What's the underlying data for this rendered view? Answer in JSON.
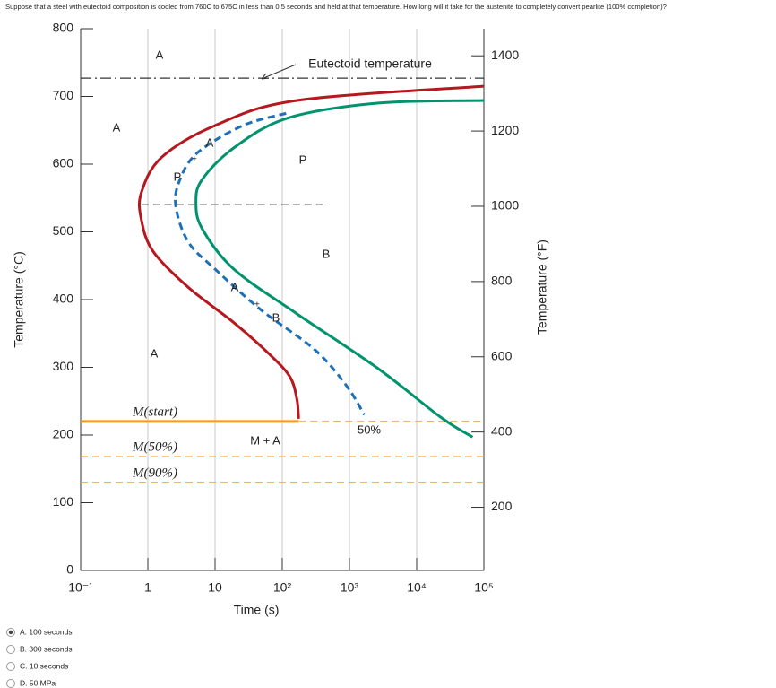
{
  "question": "Suppose that a steel with eutectoid composition is cooled from 760C to 675C in less than 0.5 seconds and held at that temperature. How long will it take for the austenite to completely convert pearlite (100% completion)?",
  "chart_data": {
    "type": "line",
    "xlabel": "Time (s)",
    "ylabel": "Temperature (°C)",
    "y2label": "Temperature (°F)",
    "xscale": "log",
    "xlim": [
      0.1,
      100000
    ],
    "xticks": [
      {
        "value": 0.1,
        "label": "10⁻¹"
      },
      1,
      10,
      {
        "value": 100,
        "label": "10²"
      },
      {
        "value": 1000,
        "label": "10³"
      },
      {
        "value": 10000,
        "label": "10⁴"
      },
      {
        "value": 100000,
        "label": "10⁵"
      }
    ],
    "ylim": [
      0,
      800
    ],
    "yticks": [
      0,
      100,
      200,
      300,
      400,
      500,
      600,
      700,
      800
    ],
    "y2lim": [
      32,
      1472
    ],
    "y2ticks": [
      200,
      400,
      600,
      800,
      1000,
      1200,
      1400
    ],
    "grid": "x",
    "series": [
      {
        "color": "#b3191f",
        "style": "solid",
        "x": [
          100000,
          165,
          10,
          1.6,
          0.8,
          0.8,
          1.2,
          4,
          19,
          65,
          130,
          165,
          175
        ],
        "values": [
          715,
          694,
          657,
          610,
          558,
          518,
          471,
          418,
          366,
          319,
          286,
          253,
          224
        ]
      },
      {
        "color": "#00936d",
        "style": "solid",
        "x": [
          100000,
          2600,
          120,
          19,
          6.4,
          5.2,
          6.4,
          19,
          165,
          2600,
          23000,
          68000
        ],
        "values": [
          694,
          690,
          668,
          624,
          577,
          544,
          505,
          445,
          379,
          299,
          226,
          197
        ]
      },
      {
        "name": "50%",
        "color": "#1f6fb5",
        "style": "dashed",
        "x": [
          114,
          26,
          5.5,
          3.0,
          2.6,
          4.0,
          10,
          48,
          305,
          900,
          1660
        ],
        "values": [
          675,
          657,
          617,
          577,
          538,
          485,
          445,
          385,
          326,
          273,
          230
        ]
      }
    ],
    "hlines": [
      {
        "label": "Eutectoid temperature",
        "value": 727,
        "color": "#333333",
        "style": "dashdot"
      },
      {
        "label": "M(start)",
        "value": 220,
        "x": [
          0.1,
          175
        ],
        "color": "#f39c1f",
        "style": "solid"
      },
      {
        "label": "M(50%)",
        "value": 168,
        "color": "#f39c1f",
        "style": "dashed"
      },
      {
        "label": "M(90%)",
        "value": 130,
        "color": "#f39c1f",
        "style": "dashed"
      },
      {
        "value": 540,
        "x": [
          0.8,
          420
        ],
        "color": "#333333",
        "style": "dashed"
      }
    ],
    "annotations": [
      "A",
      "A",
      "A",
      "P",
      "P",
      "B",
      "A",
      "B",
      "A",
      "M + A"
    ]
  },
  "options": [
    {
      "label": "A. 100 seconds",
      "checked": true
    },
    {
      "label": "B. 300 seconds",
      "checked": false
    },
    {
      "label": "C. 10 seconds",
      "checked": false
    },
    {
      "label": "D. 50 MPa",
      "checked": false
    }
  ]
}
